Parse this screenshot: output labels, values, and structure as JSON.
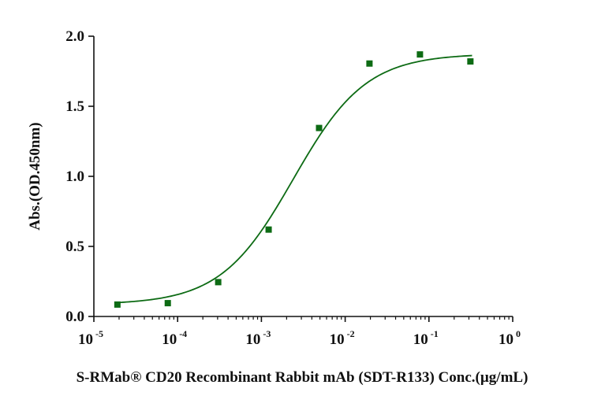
{
  "chart_data": {
    "type": "scatter",
    "title": "",
    "xlabel": "S-RMab® CD20 Recombinant Rabbit mAb (SDT-R133) Conc.(µg/mL)",
    "ylabel": "Abs.(OD.450nm)",
    "xscale": "log",
    "xlim": [
      1e-05,
      1
    ],
    "ylim": [
      0,
      2.0
    ],
    "x_ticks": [
      {
        "base": "10",
        "exp": "-5"
      },
      {
        "base": "10",
        "exp": "-4"
      },
      {
        "base": "10",
        "exp": "-3"
      },
      {
        "base": "10",
        "exp": "-2"
      },
      {
        "base": "10",
        "exp": "-1"
      },
      {
        "base": "10",
        "exp": "0"
      }
    ],
    "y_ticks": [
      "0.0",
      "0.5",
      "1.0",
      "1.5",
      "2.0"
    ],
    "grid": false,
    "series": [
      {
        "x": [
          1.91e-05,
          7.63e-05,
          0.000305,
          0.00122,
          0.00488,
          0.0195,
          0.0781,
          0.3125
        ],
        "y": [
          0.085,
          0.095,
          0.245,
          0.62,
          1.345,
          1.805,
          1.87,
          1.82
        ],
        "color": "#0d6b14",
        "marker": "square",
        "fit": "4PL",
        "fit_params": {
          "bottom": 0.085,
          "top": 1.875,
          "ec50": 0.0024,
          "hill": 1.0
        }
      }
    ]
  }
}
